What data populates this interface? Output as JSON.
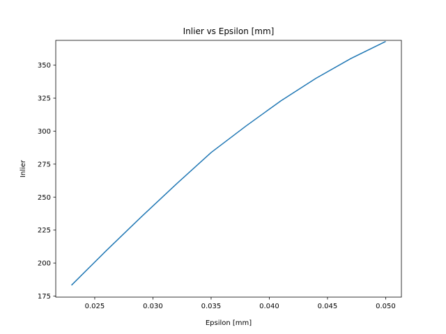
{
  "chart_data": {
    "type": "line",
    "title": "Inlier vs Epsilon [mm]",
    "xlabel": "Epsilon [mm]",
    "ylabel": "Inlier",
    "xlim": [
      0.02165,
      0.05135
    ],
    "ylim": [
      174.2,
      368.8
    ],
    "xticks": [
      0.025,
      0.03,
      0.035,
      0.04,
      0.045,
      0.05
    ],
    "xtick_labels": [
      "0.025",
      "0.030",
      "0.035",
      "0.040",
      "0.045",
      "0.050"
    ],
    "yticks": [
      175,
      200,
      225,
      250,
      275,
      300,
      325,
      350
    ],
    "ytick_labels": [
      "175",
      "200",
      "225",
      "250",
      "275",
      "300",
      "325",
      "350"
    ],
    "grid": false,
    "series": [
      {
        "color": "#1f77b4",
        "x": [
          0.023,
          0.026,
          0.029,
          0.032,
          0.035,
          0.038,
          0.041,
          0.044,
          0.047,
          0.05
        ],
        "y": [
          183.2,
          209.5,
          235.0,
          259.8,
          283.8,
          303.9,
          323.0,
          340.0,
          355.0,
          368.0
        ]
      }
    ]
  }
}
